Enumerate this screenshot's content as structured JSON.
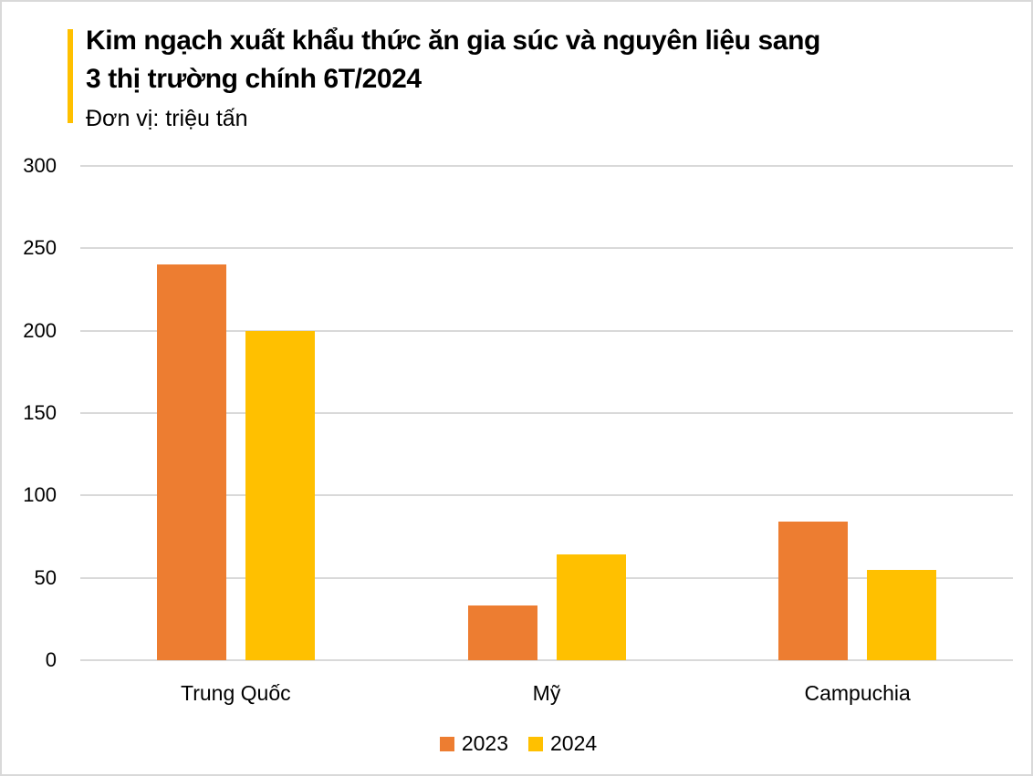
{
  "title_line1": "Kim ngạch xuất khẩu thức ăn gia súc và nguyên liệu sang",
  "title_line2": "3 thị trường chính 6T/2024",
  "subtitle": "Đơn vị: triệu tấn",
  "colors": {
    "accent": "#FFC000",
    "series_2023": "#ED7D31",
    "series_2024": "#FFC000",
    "grid": "#D9D9D9"
  },
  "y_ticks": [
    "300",
    "250",
    "200",
    "150",
    "100",
    "50",
    "0"
  ],
  "legend": [
    {
      "label": "2023",
      "color": "#ED7D31"
    },
    {
      "label": "2024",
      "color": "#FFC000"
    }
  ],
  "chart_data": {
    "type": "bar",
    "title": "Kim ngạch xuất khẩu thức ăn gia súc và nguyên liệu sang 3 thị trường chính 6T/2024",
    "subtitle": "Đơn vị: triệu tấn",
    "categories": [
      "Trung Quốc",
      "Mỹ",
      "Campuchia"
    ],
    "series": [
      {
        "name": "2023",
        "color": "#ED7D31",
        "values": [
          240,
          33,
          84
        ]
      },
      {
        "name": "2024",
        "color": "#FFC000",
        "values": [
          200,
          64,
          55
        ]
      }
    ],
    "xlabel": "",
    "ylabel": "",
    "ylim": [
      0,
      300
    ],
    "yticks": [
      0,
      50,
      100,
      150,
      200,
      250,
      300
    ],
    "grid": true,
    "legend_position": "bottom"
  }
}
